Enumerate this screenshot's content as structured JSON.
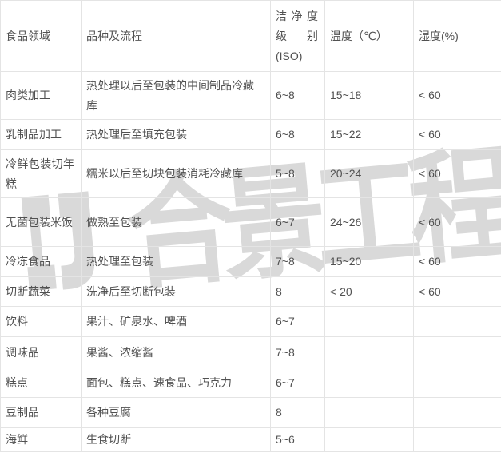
{
  "watermark": {
    "text": "合景工程",
    "color": "#d9d9d9"
  },
  "table": {
    "columns": [
      "食品领域",
      "品种及流程",
      "洁净度级别(ISO)",
      "温度（℃）",
      "湿度(%)"
    ],
    "rows": [
      [
        "肉类加工",
        "热处理以后至包装的中间制品冷藏库",
        "6~8",
        "15~18",
        "< 60"
      ],
      [
        "乳制品加工",
        "热处理后至填充包装",
        "6~8",
        "15~22",
        "< 60"
      ],
      [
        "冷鲜包装切年糕",
        "糯米以后至切块包装消耗冷藏库",
        "5~8",
        "20~24",
        "< 60"
      ],
      [
        "无菌包装米饭",
        "做熟至包装",
        "6~7",
        "24~26",
        "< 60"
      ],
      [
        "冷冻食品",
        "热处理至包装",
        "7~8",
        "15~20",
        "< 60"
      ],
      [
        "切断蔬菜",
        "洗净后至切断包装",
        "8",
        "< 20",
        "< 60"
      ],
      [
        "饮料",
        "果汁、矿泉水、啤酒",
        "6~7",
        "",
        ""
      ],
      [
        "调味品",
        "果酱、浓缩酱",
        "7~8",
        "",
        ""
      ],
      [
        "糕点",
        "面包、糕点、速食品、巧克力",
        "6~7",
        "",
        ""
      ],
      [
        "豆制品",
        "各种豆腐",
        "8",
        "",
        ""
      ],
      [
        "海鲜",
        "生食切断",
        "5~6",
        "",
        ""
      ]
    ],
    "text_color": "#515151",
    "border_color": "#e4e4e4"
  }
}
